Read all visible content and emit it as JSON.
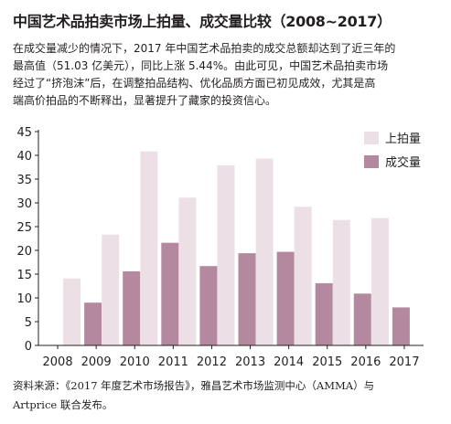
{
  "header": {
    "title": "中国艺术品拍卖市场上拍量、成交量比较（2008~2017）"
  },
  "description": {
    "lines": [
      "在成交量减少的情况下，2017 年中国艺术品拍卖的成交总额却达到了近三年的",
      "最高值（51.03 亿美元），同比上涨 5.44%。由此可见，中国艺术品拍卖市场",
      "经过了“挤泡沫”后，在调整拍品结构、优化品质方面已初见成效，尤其是高",
      "端高价拍品的不断释出，显著提升了藏家的投资信心。"
    ]
  },
  "footer": {
    "source_lines": [
      "资料来源：《2017 年度艺术市场报告》，雅昌艺术市场监测中心（AMMA）与",
      "Artprice 联合发布。"
    ]
  },
  "colors": {
    "listed": "#eddfe6",
    "sold": "#b4889e",
    "axis": "#231f20"
  },
  "chart_data": {
    "type": "bar",
    "title": "中国艺术品拍卖市场上拍量、成交量比较（2008~2017）",
    "x_tick_labels": [
      "2008",
      "2009",
      "2010",
      "2011",
      "2012",
      "2013",
      "2014",
      "2015",
      "2016",
      "2017"
    ],
    "categories": [
      "2009",
      "2010",
      "2011",
      "2012",
      "2013",
      "2014",
      "2015",
      "2016",
      "2017"
    ],
    "series": [
      {
        "name": "上拍量",
        "color": "#eddfe6",
        "values": [
          14.1,
          23.3,
          40.8,
          31.1,
          37.9,
          39.3,
          29.2,
          26.4,
          26.8
        ]
      },
      {
        "name": "成交量",
        "color": "#b4889e",
        "values": [
          9.0,
          15.6,
          21.6,
          16.7,
          19.4,
          19.7,
          13.1,
          10.9,
          8.0
        ]
      }
    ],
    "ylim": [
      0,
      45
    ],
    "y_ticks": [
      0,
      5,
      10,
      15,
      20,
      25,
      30,
      35,
      40,
      45
    ],
    "xlabel": "",
    "ylabel": "",
    "grid": false,
    "legend": "top-right"
  }
}
